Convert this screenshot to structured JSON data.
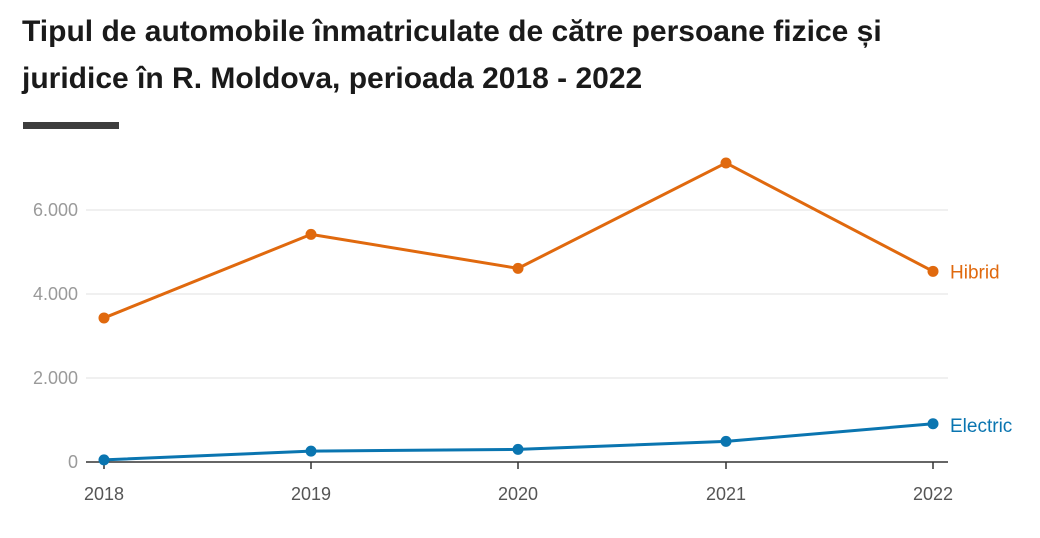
{
  "title_line1": "Tipul de automobile înmatriculate de către persoane fizice și",
  "title_line2": "juridice în R. Moldova, perioada 2018 - 2022",
  "colors": {
    "hibrid": "#e0690e",
    "electric": "#0a75b0",
    "grid": "#e2e2e2",
    "axis": "#333333"
  },
  "chart_data": {
    "type": "line",
    "title": "Tipul de automobile înmatriculate de către persoane fizice și juridice în R. Moldova, perioada 2018 - 2022",
    "categories": [
      "2018",
      "2019",
      "2020",
      "2021",
      "2022"
    ],
    "ylim": [
      0,
      7200
    ],
    "yticks": [
      0,
      2000,
      4000,
      6000
    ],
    "ytick_labels": [
      "0",
      "2.000",
      "4.000",
      "6.000"
    ],
    "grid": "horizontal",
    "legend": "inline-right",
    "series": [
      {
        "name": "Hibrid",
        "values": [
          3430,
          5420,
          4610,
          7120,
          4540
        ]
      },
      {
        "name": "Electric",
        "values": [
          50,
          260,
          300,
          490,
          910
        ]
      }
    ]
  }
}
